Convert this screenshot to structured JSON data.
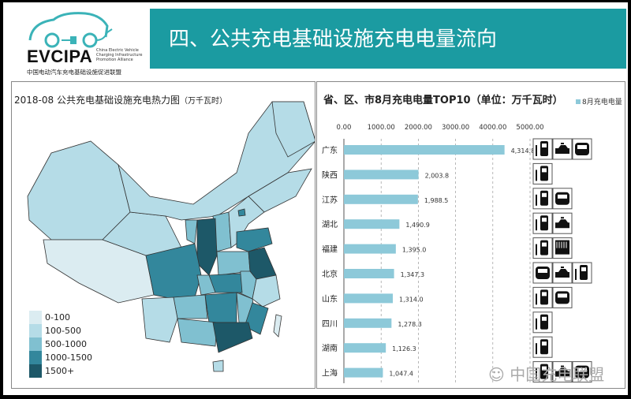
{
  "logo": {
    "name": "EVCIPA",
    "subtitle": "China Electric Vehicle Charging Infrastructure Promotion Alliance",
    "cn_name": "中国电动汽车充电基础设施促进联盟"
  },
  "banner": {
    "title": "四、公共充电基础设施充电电量流向"
  },
  "map": {
    "title": "2018-08 公共充电基础设施充电热力图",
    "unit": "（万千瓦时）",
    "legend": [
      {
        "label": "0-100",
        "color": "#dbecf1"
      },
      {
        "label": "100-500",
        "color": "#b5dce7"
      },
      {
        "label": "500-1000",
        "color": "#80c0d0"
      },
      {
        "label": "1000-1500",
        "color": "#33879c"
      },
      {
        "label": "1500+",
        "color": "#1d5868"
      }
    ]
  },
  "chart_data": {
    "type": "bar",
    "orientation": "horizontal",
    "title": "省、区、市8月充电电量TOP10（单位：万千瓦时）",
    "legend": "8月充电电量",
    "legend_position": "top-right",
    "xlim": [
      0,
      5000
    ],
    "xticks": [
      "0.00",
      "1000.00",
      "2000.00",
      "3000.00",
      "4000.00",
      "5000.00"
    ],
    "grid": "vertical dashed",
    "bar_color": "#8dc9d9",
    "categories": [
      "广东",
      "陕西",
      "江苏",
      "湖北",
      "福建",
      "北京",
      "山东",
      "四川",
      "湖南",
      "上海"
    ],
    "values": [
      4314.8,
      2003.8,
      1988.5,
      1490.9,
      1395.0,
      1347.3,
      1314.0,
      1278.3,
      1126.3,
      1047.4
    ],
    "labels": [
      "4,314.8",
      "2,003.8",
      "1,988.5",
      "1,490.9",
      "1,395.0",
      "1,347.3",
      "1,314.0",
      "1,278.3",
      "1,126.3",
      "1,047.4"
    ],
    "vehicle_icons": [
      [
        "bus",
        "taxi",
        "car"
      ],
      [
        "bus"
      ],
      [
        "bus",
        "car"
      ],
      [
        "bus",
        "taxi"
      ],
      [
        "bus",
        "truck"
      ],
      [
        "car",
        "taxi",
        "bus"
      ],
      [
        "bus",
        "car"
      ],
      [
        "bus"
      ],
      [
        "bus"
      ],
      [
        "bus",
        "taxi",
        "car"
      ]
    ]
  },
  "watermark": "中国充电联盟"
}
